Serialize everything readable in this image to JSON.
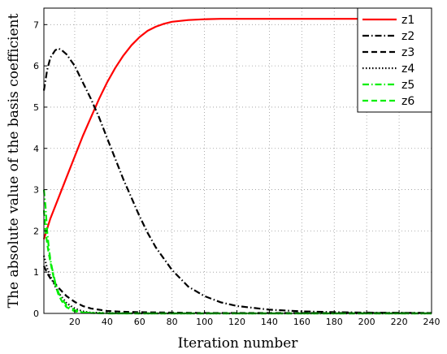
{
  "chart_data": {
    "type": "line",
    "xlabel": "Iteration number",
    "ylabel": "The absolute value of the basis coefficient",
    "xlim": [
      1,
      240
    ],
    "ylim": [
      0,
      7.4
    ],
    "x_ticks": [
      20,
      40,
      60,
      80,
      100,
      120,
      140,
      160,
      180,
      200,
      220,
      240
    ],
    "y_ticks": [
      0,
      1,
      2,
      3,
      4,
      5,
      6,
      7
    ],
    "grid": true,
    "legend_position": "top-right",
    "series": [
      {
        "name": "z1",
        "color": "#ff0000",
        "style": "solid",
        "x": [
          1,
          5,
          10,
          15,
          20,
          25,
          30,
          35,
          40,
          45,
          50,
          55,
          60,
          65,
          70,
          75,
          80,
          90,
          100,
          110,
          120,
          140,
          160,
          200,
          240
        ],
        "y": [
          1.8,
          2.3,
          2.8,
          3.3,
          3.8,
          4.3,
          4.75,
          5.2,
          5.6,
          5.95,
          6.25,
          6.5,
          6.7,
          6.85,
          6.95,
          7.02,
          7.07,
          7.11,
          7.13,
          7.14,
          7.14,
          7.14,
          7.14,
          7.14,
          7.14
        ]
      },
      {
        "name": "z2",
        "color": "#000000",
        "style": "dashdot",
        "x": [
          1,
          3,
          5,
          8,
          10,
          12,
          15,
          20,
          25,
          30,
          35,
          40,
          45,
          50,
          55,
          60,
          65,
          70,
          80,
          90,
          100,
          110,
          120,
          140,
          160,
          180,
          200,
          240
        ],
        "y": [
          5.4,
          5.9,
          6.2,
          6.38,
          6.42,
          6.38,
          6.28,
          6.0,
          5.6,
          5.2,
          4.75,
          4.25,
          3.75,
          3.25,
          2.8,
          2.35,
          1.95,
          1.6,
          1.05,
          0.65,
          0.42,
          0.27,
          0.18,
          0.09,
          0.05,
          0.03,
          0.02,
          0.01
        ]
      },
      {
        "name": "z3",
        "color": "#000000",
        "style": "dashed",
        "x": [
          1,
          3,
          5,
          8,
          10,
          15,
          20,
          25,
          30,
          40,
          50,
          60,
          80,
          100,
          150,
          200,
          240
        ],
        "y": [
          1.15,
          0.98,
          0.85,
          0.72,
          0.62,
          0.42,
          0.28,
          0.18,
          0.12,
          0.06,
          0.04,
          0.03,
          0.02,
          0.01,
          0.01,
          0.01,
          0.01
        ]
      },
      {
        "name": "z4",
        "color": "#000000",
        "style": "dotted",
        "x": [
          1,
          3,
          5,
          8,
          10,
          15,
          20,
          25,
          30,
          40,
          60,
          100,
          240
        ],
        "y": [
          1.4,
          1.1,
          0.9,
          0.65,
          0.5,
          0.25,
          0.12,
          0.05,
          0.02,
          0.01,
          0.0,
          0.0,
          0.0
        ]
      },
      {
        "name": "z5",
        "color": "#00ee00",
        "style": "dashdot",
        "x": [
          1,
          2,
          3,
          4,
          5,
          6,
          8,
          10,
          12,
          15,
          20,
          25,
          30,
          40,
          60,
          100,
          240
        ],
        "y": [
          3.0,
          2.6,
          2.0,
          1.6,
          1.3,
          1.1,
          0.75,
          0.5,
          0.35,
          0.2,
          0.08,
          0.03,
          0.01,
          0.0,
          0.0,
          0.0,
          0.0
        ]
      },
      {
        "name": "z6",
        "color": "#00ee00",
        "style": "dashed",
        "x": [
          1,
          2,
          3,
          4,
          5,
          6,
          8,
          10,
          12,
          15,
          20,
          25,
          30,
          40,
          60,
          100,
          240
        ],
        "y": [
          2.5,
          2.0,
          1.7,
          1.45,
          1.25,
          1.05,
          0.7,
          0.45,
          0.3,
          0.15,
          0.05,
          0.02,
          0.01,
          0.0,
          0.0,
          0.0,
          0.0
        ]
      }
    ]
  }
}
